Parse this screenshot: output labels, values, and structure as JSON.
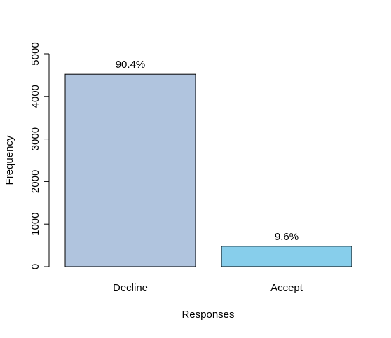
{
  "chart_data": {
    "type": "bar",
    "title": "",
    "xlabel": "Responses",
    "ylabel": "Frequency",
    "categories": [
      "Decline",
      "Accept"
    ],
    "values": [
      4520,
      480
    ],
    "data_labels": [
      "90.4%",
      "9.6%"
    ],
    "ylim": [
      0,
      5000
    ],
    "yticks": [
      0,
      1000,
      2000,
      3000,
      4000,
      5000
    ],
    "ytick_labels": [
      "0",
      "1000",
      "2000",
      "3000",
      "4000",
      "5000"
    ],
    "grid": false,
    "legend": "none",
    "colors": [
      "#b0c4de",
      "#87ceeb"
    ],
    "bar_border_color": "#000000"
  }
}
